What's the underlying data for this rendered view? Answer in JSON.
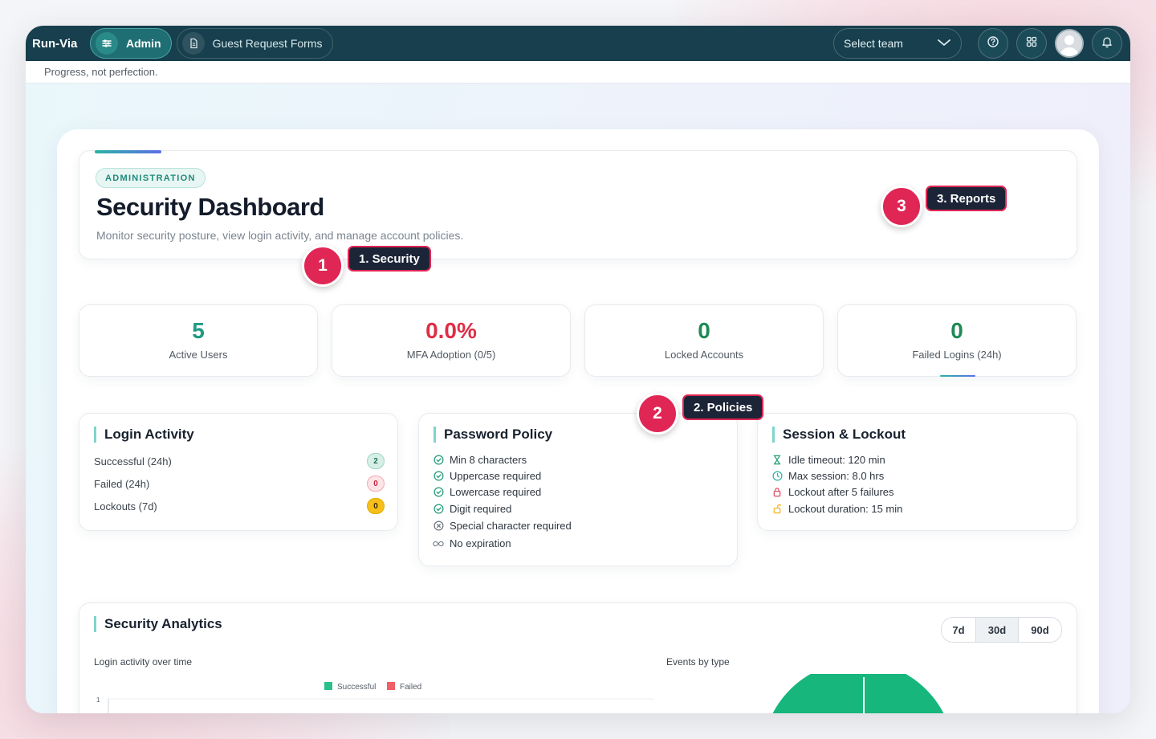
{
  "app": {
    "brand": "Run-Via",
    "tagline": "Progress, not perfection."
  },
  "nav": {
    "items": [
      {
        "label": "Admin",
        "icon": "sliders-icon",
        "active": true
      },
      {
        "label": "Guest Request Forms",
        "icon": "document-icon",
        "active": false
      }
    ],
    "team_select": {
      "value": "Select team"
    },
    "icons": [
      "help-icon",
      "apps-grid-icon",
      "avatar",
      "bell-icon"
    ]
  },
  "header": {
    "badge": "ADMINISTRATION",
    "title": "Security Dashboard",
    "subtitle": "Monitor security posture, view login activity, and manage account policies."
  },
  "stats": [
    {
      "value": "5",
      "label": "Active Users",
      "color": "#1f9a83"
    },
    {
      "value": "0.0%",
      "label": "MFA Adoption (0/5)",
      "color": "#df2d45"
    },
    {
      "value": "0",
      "label": "Locked Accounts",
      "color": "#1f8a55"
    },
    {
      "value": "0",
      "label": "Failed Logins (24h)",
      "color": "#1f8a55"
    }
  ],
  "login_activity": {
    "title": "Login Activity",
    "rows": [
      {
        "label": "Successful (24h)",
        "count": "2",
        "bg": "#d6efe7",
        "fg": "#1f6e5a",
        "border": "#9fd6c4"
      },
      {
        "label": "Failed (24h)",
        "count": "0",
        "bg": "#fde4e6",
        "fg": "#c1283d",
        "border": "#f2a9b1"
      },
      {
        "label": "Lockouts (7d)",
        "count": "0",
        "bg": "#f6bf1a",
        "fg": "#3b2b00",
        "border": "#e5ac00"
      }
    ]
  },
  "password_policy": {
    "title": "Password Policy",
    "items": [
      {
        "label": "Min 8 characters",
        "icon": "check-circle-icon"
      },
      {
        "label": "Uppercase required",
        "icon": "check-circle-icon"
      },
      {
        "label": "Lowercase required",
        "icon": "check-circle-icon"
      },
      {
        "label": "Digit required",
        "icon": "check-circle-icon"
      },
      {
        "label": "Special character required",
        "icon": "x-circle-icon"
      },
      {
        "label": "No expiration",
        "icon": "infinity-icon"
      }
    ]
  },
  "session_lockout": {
    "title": "Session & Lockout",
    "items": [
      {
        "label": "Idle timeout: 120 min",
        "icon": "hourglass-icon"
      },
      {
        "label": "Max session: 8.0 hrs",
        "icon": "clock-icon"
      },
      {
        "label": "Lockout after 5 failures",
        "icon": "lock-icon"
      },
      {
        "label": "Lockout duration: 15 min",
        "icon": "unlock-icon"
      }
    ]
  },
  "analytics": {
    "title": "Security Analytics",
    "ranges": [
      "7d",
      "30d",
      "90d"
    ],
    "selected_range": "30d",
    "line_chart_title": "Login activity over time",
    "pie_chart_title": "Events by type"
  },
  "chart_data": [
    {
      "type": "line",
      "title": "Login activity over time",
      "series": [
        {
          "name": "Successful"
        },
        {
          "name": "Failed"
        }
      ],
      "series_colors": [
        "#2bbf8a",
        "#ef5f67"
      ],
      "yticks": [
        "1"
      ],
      "legend": "top"
    },
    {
      "type": "pie",
      "title": "Events by type",
      "color": "#17b67c"
    }
  ],
  "callouts": [
    {
      "number": "1",
      "label": "1. Security"
    },
    {
      "number": "2",
      "label": "2. Policies"
    },
    {
      "number": "3",
      "label": "3. Reports"
    }
  ]
}
